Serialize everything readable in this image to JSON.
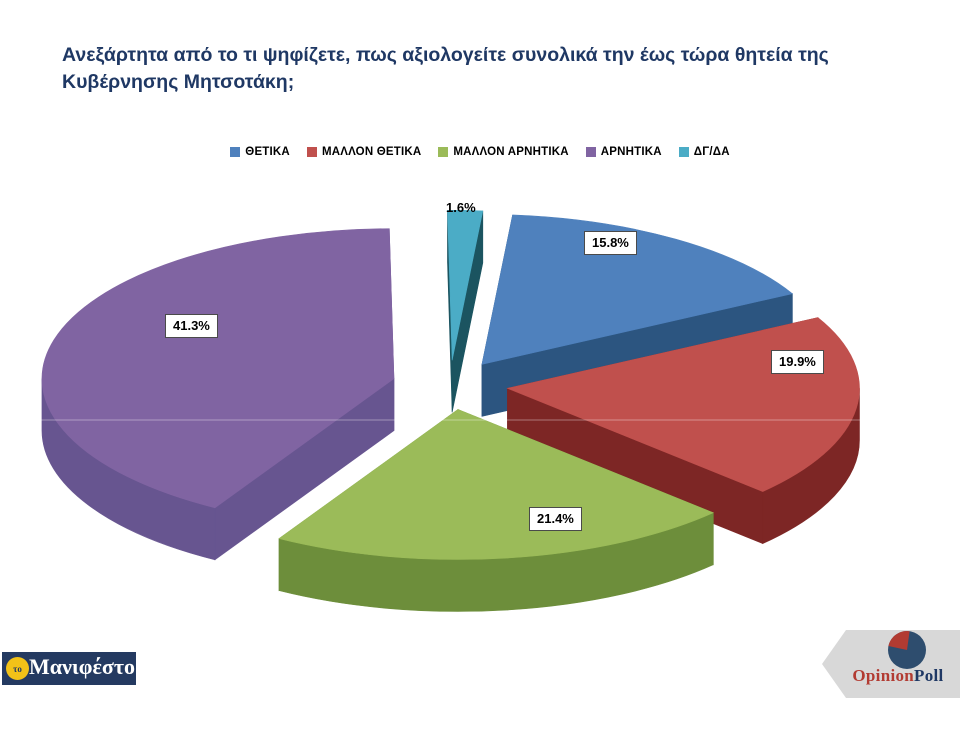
{
  "title": "Ανεξάρτητα από το τι ψηφίζετε, πως αξιολογείτε συνολικά την έως τώρα θητεία της Κυβέρνησης Μητσοτάκη;",
  "chart_data": {
    "type": "pie",
    "style": "3d-exploded",
    "legend_position": "top",
    "categories": [
      "ΘΕΤΙΚΑ",
      "ΜΑΛΛΟΝ ΘΕΤΙΚΑ",
      "ΜΑΛΛΟΝ ΑΡΝΗΤΙΚΑ",
      "ΑΡΝΗΤΙΚΑ",
      "ΔΓ/ΔΑ"
    ],
    "values": [
      15.8,
      19.9,
      21.4,
      41.3,
      1.6
    ],
    "slices": [
      {
        "name": "positive",
        "label": "ΘΕΤΙΚΑ",
        "value": 15.8,
        "display": "15.8%",
        "color": "#4F81BD",
        "side_color": "#2C5580"
      },
      {
        "name": "rather-positive",
        "label": "ΜΑΛΛΟΝ ΘΕΤΙΚΑ",
        "value": 19.9,
        "display": "19.9%",
        "color": "#C0504D",
        "side_color": "#7D2625"
      },
      {
        "name": "rather-negative",
        "label": "ΜΑΛΛΟΝ ΑΡΝΗΤΙΚΑ",
        "value": 21.4,
        "display": "21.4%",
        "color": "#9BBB59",
        "side_color": "#6D8E3B"
      },
      {
        "name": "negative",
        "label": "ΑΡΝΗΤΙΚΑ",
        "value": 41.3,
        "display": "41.3%",
        "color": "#8064A2",
        "side_color": "#675590"
      },
      {
        "name": "dk-na",
        "label": "ΔΓ/ΔΑ",
        "value": 1.6,
        "display": "1.6%",
        "color": "#4BACC6",
        "side_color": "#1B5460"
      }
    ]
  },
  "logos": {
    "manifesto": {
      "prefix": "το",
      "text": "Μανιφέστο",
      "bg": "#243A61",
      "circle_color": "#F2C218",
      "text_color": "#FFFFFF"
    },
    "opinion_poll": {
      "part1": "Opinion",
      "part2": "Poll",
      "part1_color": "#B23B32",
      "part2_color": "#1F3864",
      "banner_color": "#D8D8D8",
      "pie_navy": "#2E4D6E",
      "pie_red": "#B23B32"
    }
  }
}
